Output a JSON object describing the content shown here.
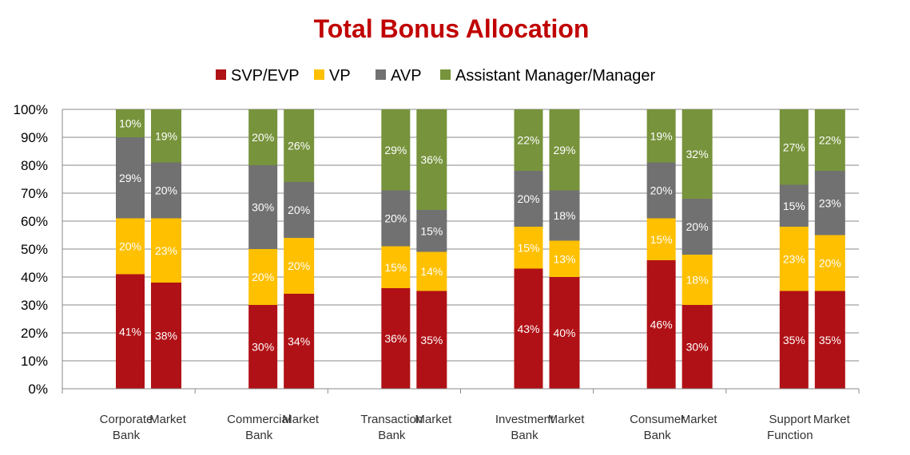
{
  "chart_data": {
    "type": "bar",
    "stacked": true,
    "percent": true,
    "title": "Total Bonus Allocation",
    "legend_position": "top",
    "ylim": [
      0,
      100
    ],
    "yticks": [
      "0%",
      "10%",
      "20%",
      "30%",
      "40%",
      "50%",
      "60%",
      "70%",
      "80%",
      "90%",
      "100%"
    ],
    "grid": true,
    "groups": [
      {
        "label": [
          "Corporate",
          "Bank"
        ],
        "bars": [
          "Corporate Bank",
          "Market"
        ]
      },
      {
        "label": [
          "Commercial",
          "Bank"
        ],
        "bars": [
          "Commercial Bank",
          "Market"
        ]
      },
      {
        "label": [
          "Transaction",
          "Bank"
        ],
        "bars": [
          "Transaction Bank",
          "Market"
        ]
      },
      {
        "label": [
          "Investment",
          "Bank"
        ],
        "bars": [
          "Investment Bank",
          "Market"
        ]
      },
      {
        "label": [
          "Consumer",
          "Bank"
        ],
        "bars": [
          "Consumer Bank",
          "Market"
        ]
      },
      {
        "label": [
          "Support",
          "Function"
        ],
        "bars": [
          "Support Function",
          "Market"
        ]
      }
    ],
    "second_bar_label": "Market",
    "series": [
      {
        "name": "SVP/EVP",
        "color": "#B01116",
        "values": [
          41,
          38,
          30,
          34,
          36,
          35,
          43,
          40,
          46,
          30,
          35,
          35
        ]
      },
      {
        "name": "VP",
        "color": "#FFC000",
        "values": [
          20,
          23,
          20,
          20,
          15,
          14,
          15,
          13,
          15,
          18,
          23,
          20
        ]
      },
      {
        "name": "AVP",
        "color": "#717171",
        "values": [
          29,
          20,
          30,
          20,
          20,
          15,
          20,
          18,
          20,
          20,
          15,
          23
        ]
      },
      {
        "name": "Assistant Manager/Manager",
        "color": "#77933C",
        "values": [
          10,
          19,
          20,
          26,
          29,
          36,
          22,
          29,
          19,
          32,
          27,
          22
        ]
      }
    ],
    "title_color": "#C00000"
  }
}
